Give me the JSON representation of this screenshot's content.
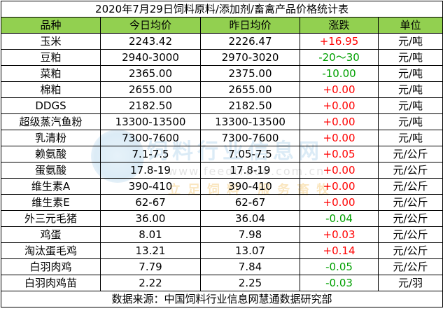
{
  "title": "2020年7月29日饲料原料/添加剂/畜禽产品价格统计表",
  "headers": [
    "品种",
    "今日均价",
    "昨日均价",
    "涨跌",
    "单位"
  ],
  "rows": [
    {
      "name": "玉米",
      "today": "2243.42",
      "yesterday": "2226.47",
      "change": "+16.95",
      "dir": "up",
      "unit": "元/吨"
    },
    {
      "name": "豆粕",
      "today": "2940-3000",
      "yesterday": "2970-3020",
      "change": "-20～30",
      "dir": "down",
      "unit": "元/吨"
    },
    {
      "name": "菜粕",
      "today": "2365.00",
      "yesterday": "2375.00",
      "change": "-10.00",
      "dir": "down",
      "unit": "元/吨"
    },
    {
      "name": "棉粕",
      "today": "2655.00",
      "yesterday": "2655.00",
      "change": "+0.00",
      "dir": "up",
      "unit": "元/吨"
    },
    {
      "name": "DDGS",
      "today": "2182.50",
      "yesterday": "2182.50",
      "change": "+0.00",
      "dir": "up",
      "unit": "元/吨"
    },
    {
      "name": "超级蒸汽鱼粉",
      "today": "13300-13500",
      "yesterday": "13300-13500",
      "change": "+0.00",
      "dir": "up",
      "unit": "元/吨"
    },
    {
      "name": "乳清粉",
      "today": "7300-7600",
      "yesterday": "7300-7600",
      "change": "+0.00",
      "dir": "up",
      "unit": "元/吨"
    },
    {
      "name": "赖氨酸",
      "today": "7.1-7.5",
      "yesterday": "7.05-7.5",
      "change": "+0.05",
      "dir": "up",
      "unit": "元/公斤"
    },
    {
      "name": "蛋氨酸",
      "today": "17.8-19",
      "yesterday": "17.8-19",
      "change": "+0.00",
      "dir": "up",
      "unit": "元/公斤"
    },
    {
      "name": "维生素A",
      "today": "390-410",
      "yesterday": "390-410",
      "change": "+0.00",
      "dir": "up",
      "unit": "元/公斤"
    },
    {
      "name": "维生素E",
      "today": "62-67",
      "yesterday": "62-67",
      "change": "+0.00",
      "dir": "up",
      "unit": "元/公斤"
    },
    {
      "name": "外三元毛猪",
      "today": "36.00",
      "yesterday": "36.04",
      "change": "-0.04",
      "dir": "down",
      "unit": "元/公斤"
    },
    {
      "name": "鸡蛋",
      "today": "8.01",
      "yesterday": "7.98",
      "change": "+0.03",
      "dir": "up",
      "unit": "元/公斤"
    },
    {
      "name": "淘汰蛋毛鸡",
      "today": "13.21",
      "yesterday": "13.07",
      "change": "+0.14",
      "dir": "up",
      "unit": "元/公斤"
    },
    {
      "name": "白羽肉鸡",
      "today": "7.79",
      "yesterday": "7.84",
      "change": "-0.05",
      "dir": "down",
      "unit": "元/公斤"
    },
    {
      "name": "白羽肉鸡苗",
      "today": "2.22",
      "yesterday": "2.25",
      "change": "-0.03",
      "dir": "down",
      "unit": "元/羽"
    }
  ],
  "footer": "数据来源：中国饲料行业信息网慧通数据研究部",
  "watermark": {
    "line1": "饲料行业信息网",
    "line2": "www.feedtrade.com.cn",
    "line3": "立足饲料 服务畜牧"
  },
  "colors": {
    "header_bg": "#92d050",
    "up": "#ff0000",
    "down": "#00a000"
  }
}
